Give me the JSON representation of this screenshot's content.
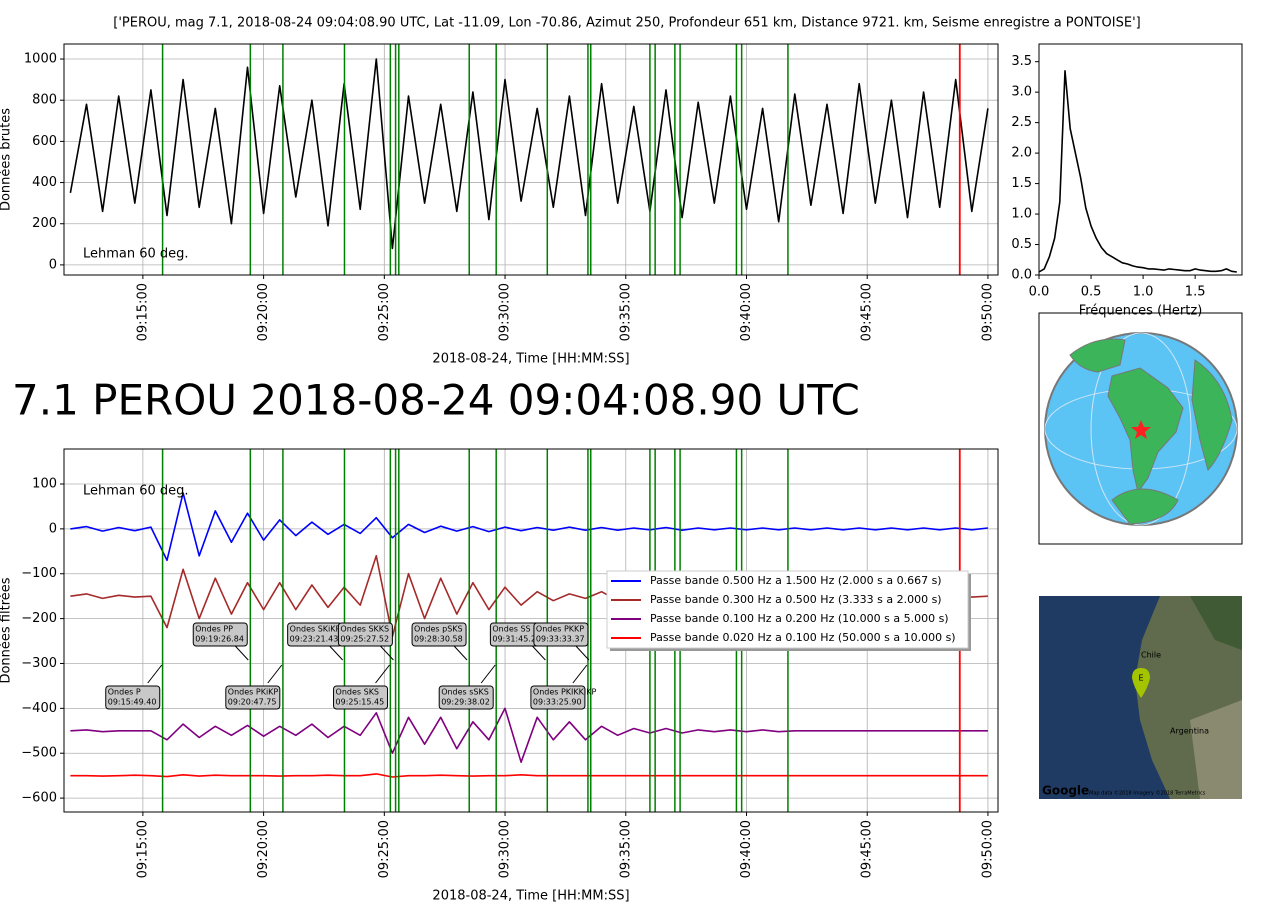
{
  "headline": "7.1 PEROU 2018-08-24 09:04:08.90 UTC",
  "map": {
    "labels": [
      "Chile",
      "Argentina"
    ],
    "marker": "E",
    "logo": "Google",
    "credit": "Map data ©2018  Imagery ©2018 TerraMetrics"
  },
  "chart_data": [
    {
      "type": "line",
      "title": "['PEROU, mag 7.1, 2018-08-24 09:04:08.90 UTC, Lat -11.09, Lon -70.86, Azimut 250, Profondeur 651 km, Distance 9721. km, Seisme enregistre a PONTOISE']",
      "ylabel": "Données brutes",
      "xlabel": "2018-08-24, Time [HH:MM:SS]",
      "annotation": "Lehman 60 deg.",
      "annotation_color": "#f08080",
      "x": [
        "09:12:00",
        "09:12:40",
        "09:13:20",
        "09:14:00",
        "09:14:40",
        "09:15:20",
        "09:16:00",
        "09:16:40",
        "09:17:20",
        "09:18:00",
        "09:18:40",
        "09:19:20",
        "09:20:00",
        "09:20:40",
        "09:21:20",
        "09:22:00",
        "09:22:40",
        "09:23:20",
        "09:24:00",
        "09:24:40",
        "09:25:20",
        "09:26:00",
        "09:26:40",
        "09:27:20",
        "09:28:00",
        "09:28:40",
        "09:29:20",
        "09:30:00",
        "09:30:40",
        "09:31:20",
        "09:32:00",
        "09:32:40",
        "09:33:20",
        "09:34:00",
        "09:34:40",
        "09:35:20",
        "09:36:00",
        "09:36:40",
        "09:37:20",
        "09:38:00",
        "09:38:40",
        "09:39:20",
        "09:40:00",
        "09:40:40",
        "09:41:20",
        "09:42:00",
        "09:42:40",
        "09:43:20",
        "09:44:00",
        "09:44:40",
        "09:45:20",
        "09:46:00",
        "09:46:40",
        "09:47:20",
        "09:48:00",
        "09:48:40",
        "09:49:20",
        "09:50:00"
      ],
      "series": [
        {
          "color": "#000000",
          "values": [
            350,
            780,
            260,
            820,
            300,
            850,
            240,
            900,
            280,
            760,
            200,
            960,
            250,
            870,
            330,
            800,
            190,
            880,
            270,
            1000,
            80,
            820,
            300,
            780,
            260,
            840,
            220,
            900,
            310,
            760,
            280,
            820,
            240,
            880,
            300,
            770,
            260,
            850,
            230,
            790,
            300,
            820,
            270,
            760,
            210,
            830,
            290,
            780,
            250,
            880,
            300,
            800,
            230,
            840,
            280,
            900,
            260,
            760
          ]
        }
      ],
      "xlim": [
        "09:11:44",
        "09:50:25"
      ],
      "ylim": [
        -49,
        1073
      ],
      "xticks": [
        "09:15:00",
        "09:20:00",
        "09:25:00",
        "09:30:00",
        "09:35:00",
        "09:40:00",
        "09:45:00",
        "09:50:00"
      ],
      "yticks": [
        0,
        200,
        400,
        600,
        800,
        1000
      ],
      "grid": true,
      "vlines": {
        "color": "#008000",
        "x": [
          "09:15:49",
          "09:19:27",
          "09:20:48",
          "09:23:21",
          "09:25:15",
          "09:25:28",
          "09:25:36",
          "09:28:31",
          "09:29:38",
          "09:31:45",
          "09:33:26",
          "09:33:33",
          "09:36:00",
          "09:36:13",
          "09:37:02",
          "09:37:15",
          "09:39:35",
          "09:39:48",
          "09:41:43"
        ]
      },
      "end_line": {
        "color": "#ff0000",
        "x": "09:48:50"
      }
    },
    {
      "type": "line",
      "ylabel": "Données filtrées",
      "xlabel": "2018-08-24, Time [HH:MM:SS]",
      "annotation": "Lehman 60 deg.",
      "annotation_color": "#800080",
      "x": [
        "09:12:00",
        "09:12:40",
        "09:13:20",
        "09:14:00",
        "09:14:40",
        "09:15:20",
        "09:16:00",
        "09:16:40",
        "09:17:20",
        "09:18:00",
        "09:18:40",
        "09:19:20",
        "09:20:00",
        "09:20:40",
        "09:21:20",
        "09:22:00",
        "09:22:40",
        "09:23:20",
        "09:24:00",
        "09:24:40",
        "09:25:20",
        "09:26:00",
        "09:26:40",
        "09:27:20",
        "09:28:00",
        "09:28:40",
        "09:29:20",
        "09:30:00",
        "09:30:40",
        "09:31:20",
        "09:32:00",
        "09:32:40",
        "09:33:20",
        "09:34:00",
        "09:34:40",
        "09:35:20",
        "09:36:00",
        "09:36:40",
        "09:37:20",
        "09:38:00",
        "09:38:40",
        "09:39:20",
        "09:40:00",
        "09:40:40",
        "09:41:20",
        "09:42:00",
        "09:42:40",
        "09:43:20",
        "09:44:00",
        "09:44:40",
        "09:45:20",
        "09:46:00",
        "09:46:40",
        "09:47:20",
        "09:48:00",
        "09:48:40",
        "09:49:20",
        "09:50:00"
      ],
      "series": [
        {
          "name": "Passe bande 0.500 Hz a 1.500 Hz (2.000 s a 0.667 s)",
          "color": "#0000ff",
          "values": [
            0,
            5,
            -5,
            3,
            -4,
            4,
            -70,
            80,
            -60,
            40,
            -30,
            35,
            -25,
            20,
            -15,
            15,
            -12,
            10,
            -10,
            25,
            -20,
            10,
            -8,
            6,
            -5,
            5,
            -6,
            4,
            -4,
            3,
            -3,
            4,
            -3,
            3,
            -3,
            2,
            -2,
            3,
            -3,
            2,
            -2,
            2,
            -2,
            2,
            -2,
            2,
            -2,
            2,
            -2,
            2,
            -2,
            2,
            -2,
            2,
            -2,
            2,
            -2,
            2
          ]
        },
        {
          "name": "Passe bande 0.300 Hz a 0.500 Hz (3.333 s a 2.000 s)",
          "color": "#a52a2a",
          "values": [
            -150,
            -145,
            -155,
            -148,
            -152,
            -150,
            -220,
            -90,
            -200,
            -110,
            -190,
            -120,
            -180,
            -120,
            -180,
            -125,
            -175,
            -130,
            -170,
            -60,
            -240,
            -100,
            -200,
            -110,
            -190,
            -120,
            -180,
            -130,
            -170,
            -140,
            -160,
            -145,
            -155,
            -140,
            -160,
            -145,
            -155,
            -148,
            -152,
            -148,
            -152,
            -148,
            -152,
            -148,
            -152,
            -148,
            -152,
            -148,
            -152,
            -148,
            -152,
            -148,
            -152,
            -148,
            -152,
            -148,
            -152,
            -150
          ]
        },
        {
          "name": "Passe bande 0.100 Hz a 0.200 Hz (10.000 s a 5.000 s)",
          "color": "#800080",
          "values": [
            -450,
            -448,
            -452,
            -450,
            -450,
            -450,
            -470,
            -435,
            -465,
            -440,
            -460,
            -438,
            -462,
            -440,
            -460,
            -435,
            -465,
            -440,
            -460,
            -410,
            -500,
            -420,
            -480,
            -420,
            -490,
            -430,
            -470,
            -400,
            -520,
            -420,
            -470,
            -430,
            -470,
            -440,
            -460,
            -445,
            -455,
            -445,
            -455,
            -448,
            -452,
            -448,
            -452,
            -448,
            -452,
            -450,
            -450,
            -450,
            -450,
            -450,
            -450,
            -450,
            -450,
            -450,
            -450,
            -450,
            -450,
            -450
          ]
        },
        {
          "name": "Passe bande 0.020 Hz a 0.100 Hz (50.000 s a 10.000 s)",
          "color": "#ff0000",
          "values": [
            -550,
            -550,
            -551,
            -550,
            -549,
            -550,
            -552,
            -548,
            -551,
            -549,
            -550,
            -550,
            -550,
            -551,
            -550,
            -550,
            -549,
            -550,
            -550,
            -546,
            -553,
            -550,
            -550,
            -549,
            -550,
            -551,
            -550,
            -550,
            -548,
            -550,
            -550,
            -550,
            -550,
            -550,
            -550,
            -550,
            -550,
            -550,
            -550,
            -550,
            -550,
            -550,
            -550,
            -550,
            -550,
            -550,
            -550,
            -550,
            -550,
            -550,
            -550,
            -550,
            -550,
            -550,
            -550,
            -550,
            -550,
            -550
          ]
        }
      ],
      "xlim": [
        "09:11:44",
        "09:50:25"
      ],
      "ylim": [
        -631,
        178
      ],
      "xticks": [
        "09:15:00",
        "09:20:00",
        "09:25:00",
        "09:30:00",
        "09:35:00",
        "09:40:00",
        "09:45:00",
        "09:50:00"
      ],
      "yticks": [
        {
          "value": -600,
          "label": "−600"
        },
        {
          "value": -500,
          "label": "−500"
        },
        {
          "value": -400,
          "label": "−400"
        },
        {
          "value": -300,
          "label": "−300"
        },
        {
          "value": -200,
          "label": "−200"
        },
        {
          "value": -100,
          "label": "−100"
        },
        0,
        100
      ],
      "grid": true,
      "legend": "center right",
      "vlines": {
        "color": "#008000",
        "x": [
          "09:15:49",
          "09:19:27",
          "09:20:48",
          "09:23:21",
          "09:25:15",
          "09:25:28",
          "09:25:36",
          "09:28:31",
          "09:29:38",
          "09:31:45",
          "09:33:26",
          "09:33:33",
          "09:36:00",
          "09:36:13",
          "09:37:02",
          "09:37:15",
          "09:39:35",
          "09:39:48",
          "09:41:43"
        ]
      },
      "end_line": {
        "color": "#ff0000",
        "x": "09:48:50"
      },
      "phase_labels": [
        {
          "text": "Ondes P",
          "time": "09:15:49.40"
        },
        {
          "text": "Ondes PP",
          "time": "09:19:26.84"
        },
        {
          "text": "Ondes PKiKP",
          "time": "09:20:47.75"
        },
        {
          "text": "Ondes SKiKP",
          "time": "09:23:21.43"
        },
        {
          "text": "Ondes SKS",
          "time": "09:25:15.45"
        },
        {
          "text": "Ondes SKKS",
          "time": "09:25:27.52"
        },
        {
          "text": "Ondes pSKS",
          "time": "09:28:30.58"
        },
        {
          "text": "Ondes sSKS",
          "time": "09:29:38.02"
        },
        {
          "text": "Ondes SS",
          "time": "09:31:45.20"
        },
        {
          "text": "Ondes PKKP",
          "time": "09:33:33.37"
        },
        {
          "text": "Ondes PKIKKIKP",
          "time": "09:33:25.90"
        }
      ]
    },
    {
      "type": "line",
      "xlabel": "Fréquences (Hertz)",
      "x": [
        0,
        0.05,
        0.1,
        0.15,
        0.2,
        0.25,
        0.3,
        0.35,
        0.4,
        0.45,
        0.5,
        0.55,
        0.6,
        0.65,
        0.7,
        0.75,
        0.8,
        0.85,
        0.9,
        0.95,
        1,
        1.05,
        1.1,
        1.15,
        1.2,
        1.25,
        1.3,
        1.35,
        1.4,
        1.45,
        1.5,
        1.55,
        1.6,
        1.65,
        1.7,
        1.75,
        1.8,
        1.85,
        1.9
      ],
      "series": [
        {
          "color": "#000000",
          "values": [
            0.05,
            0.1,
            0.3,
            0.6,
            1.2,
            3.35,
            2.4,
            2.0,
            1.6,
            1.1,
            0.8,
            0.6,
            0.45,
            0.35,
            0.3,
            0.25,
            0.2,
            0.18,
            0.15,
            0.13,
            0.12,
            0.1,
            0.1,
            0.09,
            0.08,
            0.1,
            0.09,
            0.08,
            0.07,
            0.07,
            0.1,
            0.08,
            0.07,
            0.06,
            0.06,
            0.07,
            0.1,
            0.06,
            0.05
          ]
        }
      ],
      "xlim": [
        0,
        1.95
      ],
      "ylim": [
        0,
        3.79
      ],
      "xticks": [
        {
          "value": 0,
          "label": "0.0"
        },
        0.5,
        {
          "value": 1,
          "label": "1.0"
        },
        1.5
      ],
      "yticks": [
        {
          "value": 0,
          "label": "0.0"
        },
        0.5,
        {
          "value": 1,
          "label": "1.0"
        },
        1.5,
        {
          "value": 2,
          "label": "2.0"
        },
        2.5,
        {
          "value": 3,
          "label": "3.0"
        },
        3.5
      ],
      "grid": false
    }
  ]
}
